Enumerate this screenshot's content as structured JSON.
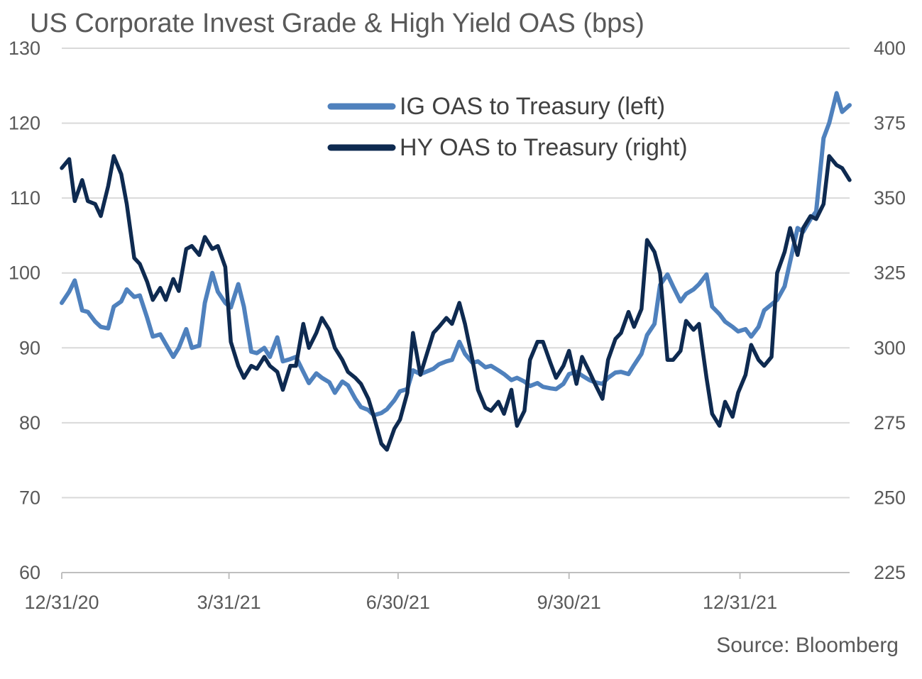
{
  "title": "US Corporate Invest Grade & High Yield OAS (bps)",
  "source": "Source: Bloomberg",
  "chart_data": {
    "type": "line",
    "title": "US Corporate Invest Grade & High Yield OAS (bps)",
    "x_ticks": [
      "12/31/20",
      "3/31/21",
      "6/30/21",
      "9/30/21",
      "12/31/21"
    ],
    "x_range": [
      "2020-12-31",
      "2022-02-28"
    ],
    "y_left": {
      "min": 60,
      "max": 130,
      "ticks": [
        "60",
        "70",
        "80",
        "90",
        "100",
        "110",
        "120",
        "130"
      ]
    },
    "y_right": {
      "min": 225,
      "max": 400,
      "ticks": [
        "225",
        "250",
        "275",
        "300",
        "325",
        "350",
        "375",
        "400"
      ]
    },
    "grid": true,
    "legend_position": "top-right",
    "series": [
      {
        "name": "IG OAS to Treasury (left)",
        "axis": "left",
        "color": "#4F81BD",
        "x": [
          "2020-12-31",
          "2021-01-04",
          "2021-01-07",
          "2021-01-11",
          "2021-01-14",
          "2021-01-18",
          "2021-01-21",
          "2021-01-25",
          "2021-01-28",
          "2021-02-01",
          "2021-02-04",
          "2021-02-08",
          "2021-02-11",
          "2021-02-15",
          "2021-02-18",
          "2021-02-22",
          "2021-02-25",
          "2021-03-01",
          "2021-03-04",
          "2021-03-08",
          "2021-03-11",
          "2021-03-15",
          "2021-03-18",
          "2021-03-22",
          "2021-03-25",
          "2021-03-29",
          "2021-04-01",
          "2021-04-05",
          "2021-04-08",
          "2021-04-12",
          "2021-04-15",
          "2021-04-19",
          "2021-04-22",
          "2021-04-26",
          "2021-04-29",
          "2021-05-03",
          "2021-05-06",
          "2021-05-10",
          "2021-05-13",
          "2021-05-17",
          "2021-05-20",
          "2021-05-24",
          "2021-05-27",
          "2021-05-31",
          "2021-06-03",
          "2021-06-07",
          "2021-06-10",
          "2021-06-14",
          "2021-06-17",
          "2021-06-21",
          "2021-06-24",
          "2021-06-28",
          "2021-07-01",
          "2021-07-05",
          "2021-07-08",
          "2021-07-12",
          "2021-07-15",
          "2021-07-19",
          "2021-07-22",
          "2021-07-26",
          "2021-07-29",
          "2021-08-02",
          "2021-08-05",
          "2021-08-09",
          "2021-08-12",
          "2021-08-16",
          "2021-08-19",
          "2021-08-23",
          "2021-08-26",
          "2021-08-30",
          "2021-09-02",
          "2021-09-06",
          "2021-09-09",
          "2021-09-13",
          "2021-09-16",
          "2021-09-20",
          "2021-09-23",
          "2021-09-27",
          "2021-09-30",
          "2021-10-04",
          "2021-10-07",
          "2021-10-11",
          "2021-10-14",
          "2021-10-18",
          "2021-10-21",
          "2021-10-25",
          "2021-10-28",
          "2021-11-01",
          "2021-11-04",
          "2021-11-08",
          "2021-11-11",
          "2021-11-15",
          "2021-11-18",
          "2021-11-22",
          "2021-11-25",
          "2021-11-29",
          "2021-12-02",
          "2021-12-06",
          "2021-12-09",
          "2021-12-13",
          "2021-12-16",
          "2021-12-20",
          "2021-12-23",
          "2021-12-27",
          "2021-12-30",
          "2022-01-03",
          "2022-01-06",
          "2022-01-10",
          "2022-01-13",
          "2022-01-17",
          "2022-01-20",
          "2022-01-24",
          "2022-01-27",
          "2022-01-31",
          "2022-02-03",
          "2022-02-07",
          "2022-02-10",
          "2022-02-14",
          "2022-02-17",
          "2022-02-21",
          "2022-02-24",
          "2022-02-28"
        ],
        "values": [
          96.0,
          97.5,
          99.0,
          95.0,
          94.8,
          93.5,
          92.8,
          92.6,
          95.5,
          96.2,
          97.8,
          96.8,
          97.0,
          94.0,
          91.5,
          91.8,
          90.5,
          88.8,
          90.0,
          92.5,
          90.0,
          90.3,
          96.0,
          100.0,
          97.5,
          96.0,
          95.4,
          98.5,
          95.5,
          89.5,
          89.3,
          90.0,
          88.8,
          91.4,
          88.2,
          88.5,
          88.8,
          86.8,
          85.3,
          86.6,
          86.0,
          85.4,
          84.0,
          85.5,
          85.0,
          83.2,
          82.1,
          81.7,
          81.0,
          81.3,
          81.8,
          83.0,
          84.2,
          84.5,
          87.0,
          86.5,
          86.8,
          87.2,
          87.8,
          88.2,
          88.4,
          90.8,
          89.2,
          88.0,
          88.2,
          87.4,
          87.6,
          87.0,
          86.5,
          85.7,
          86.0,
          85.5,
          84.9,
          85.3,
          84.8,
          84.6,
          84.5,
          85.2,
          86.5,
          86.8,
          86.3,
          85.7,
          85.4,
          85.2,
          86.0,
          86.7,
          86.8,
          86.5,
          87.7,
          89.2,
          91.7,
          93.2,
          98.4,
          99.8,
          98.2,
          96.2,
          97.2,
          97.8,
          98.5,
          99.8,
          95.5,
          94.5,
          93.5,
          92.8,
          92.2,
          92.5,
          91.5,
          92.8,
          95.0,
          95.8,
          96.4,
          98.2,
          101.5,
          106.0,
          105.5,
          107.2,
          108.2,
          118.0,
          120.0,
          124.0,
          121.5,
          122.4
        ]
      },
      {
        "name": "HY OAS to Treasury (right)",
        "axis": "right",
        "color": "#0E2A50",
        "x": [
          "2020-12-31",
          "2021-01-04",
          "2021-01-07",
          "2021-01-11",
          "2021-01-14",
          "2021-01-18",
          "2021-01-21",
          "2021-01-25",
          "2021-01-28",
          "2021-02-01",
          "2021-02-04",
          "2021-02-08",
          "2021-02-11",
          "2021-02-15",
          "2021-02-18",
          "2021-02-22",
          "2021-02-25",
          "2021-03-01",
          "2021-03-04",
          "2021-03-08",
          "2021-03-11",
          "2021-03-15",
          "2021-03-18",
          "2021-03-22",
          "2021-03-25",
          "2021-03-29",
          "2021-04-01",
          "2021-04-05",
          "2021-04-08",
          "2021-04-12",
          "2021-04-15",
          "2021-04-19",
          "2021-04-22",
          "2021-04-26",
          "2021-04-29",
          "2021-05-03",
          "2021-05-06",
          "2021-05-10",
          "2021-05-13",
          "2021-05-17",
          "2021-05-20",
          "2021-05-24",
          "2021-05-27",
          "2021-05-31",
          "2021-06-03",
          "2021-06-07",
          "2021-06-10",
          "2021-06-14",
          "2021-06-17",
          "2021-06-21",
          "2021-06-24",
          "2021-06-28",
          "2021-07-01",
          "2021-07-05",
          "2021-07-08",
          "2021-07-12",
          "2021-07-15",
          "2021-07-19",
          "2021-07-22",
          "2021-07-26",
          "2021-07-29",
          "2021-08-02",
          "2021-08-05",
          "2021-08-09",
          "2021-08-12",
          "2021-08-16",
          "2021-08-19",
          "2021-08-23",
          "2021-08-26",
          "2021-08-30",
          "2021-09-02",
          "2021-09-06",
          "2021-09-09",
          "2021-09-13",
          "2021-09-16",
          "2021-09-20",
          "2021-09-23",
          "2021-09-27",
          "2021-09-30",
          "2021-10-04",
          "2021-10-07",
          "2021-10-11",
          "2021-10-14",
          "2021-10-18",
          "2021-10-21",
          "2021-10-25",
          "2021-10-28",
          "2021-11-01",
          "2021-11-04",
          "2021-11-08",
          "2021-11-11",
          "2021-11-15",
          "2021-11-18",
          "2021-11-22",
          "2021-11-25",
          "2021-11-29",
          "2021-12-02",
          "2021-12-06",
          "2021-12-09",
          "2021-12-13",
          "2021-12-16",
          "2021-12-20",
          "2021-12-23",
          "2021-12-27",
          "2021-12-30",
          "2022-01-03",
          "2022-01-06",
          "2022-01-10",
          "2022-01-13",
          "2022-01-17",
          "2022-01-20",
          "2022-01-24",
          "2022-01-27",
          "2022-01-31",
          "2022-02-03",
          "2022-02-07",
          "2022-02-10",
          "2022-02-14",
          "2022-02-17",
          "2022-02-21",
          "2022-02-24",
          "2022-02-28"
        ],
        "values": [
          360,
          363,
          349,
          356,
          349,
          348,
          344,
          354,
          364,
          358,
          348,
          330,
          328,
          322,
          316,
          320,
          316,
          323,
          319,
          333,
          334,
          331,
          337,
          333,
          334,
          327,
          302,
          294,
          290,
          294,
          293,
          297,
          294,
          292,
          286,
          294,
          294,
          308,
          300,
          305,
          310,
          306,
          300,
          296,
          292,
          290,
          288,
          283,
          277,
          268,
          266,
          273,
          276,
          285,
          305,
          291,
          297,
          305,
          307,
          310,
          308,
          315,
          308,
          296,
          286,
          280,
          279,
          282,
          278,
          286,
          274,
          279,
          296,
          302,
          302,
          295,
          290,
          294,
          299,
          288,
          297,
          292,
          288,
          283,
          296,
          303,
          305,
          312,
          307,
          313,
          336,
          332,
          325,
          296,
          296,
          299,
          309,
          306,
          308,
          290,
          278,
          274,
          282,
          277,
          285,
          291,
          301,
          296,
          294,
          297,
          325,
          332,
          340,
          331,
          340,
          344,
          343,
          348,
          364,
          361,
          360,
          356
        ]
      }
    ]
  }
}
